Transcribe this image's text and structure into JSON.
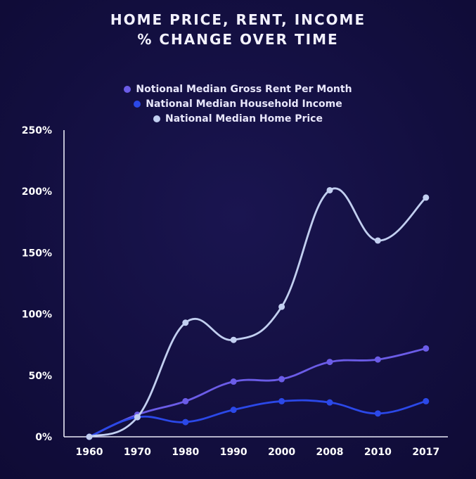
{
  "title": {
    "line1": "HOME PRICE, RENT, INCOME",
    "line2": "% CHANGE OVER TIME"
  },
  "colors": {
    "background": "#140f42",
    "axis": "#e9e9f7"
  },
  "chart_data": {
    "type": "line",
    "categories": [
      "1960",
      "1970",
      "1980",
      "1990",
      "2000",
      "2008",
      "2010",
      "2017"
    ],
    "ylim": [
      0,
      250
    ],
    "yticks": [
      0,
      50,
      100,
      150,
      200,
      250
    ],
    "ytick_labels": [
      "0%",
      "50%",
      "100%",
      "150%",
      "200%",
      "250%"
    ],
    "grid": false,
    "legend_position": "top-center",
    "series": [
      {
        "name": "Notional Median Gross Rent Per Month",
        "color": "#6b5ce7",
        "values": [
          0,
          18,
          29,
          45,
          47,
          61,
          63,
          72
        ]
      },
      {
        "name": "National Median Household Income",
        "color": "#2b48e8",
        "values": [
          0,
          16,
          12,
          22,
          29,
          28,
          19,
          29
        ]
      },
      {
        "name": "National Median Home Price",
        "color": "#c2cff0",
        "values": [
          0,
          16,
          93,
          79,
          106,
          201,
          160,
          195
        ]
      }
    ]
  }
}
